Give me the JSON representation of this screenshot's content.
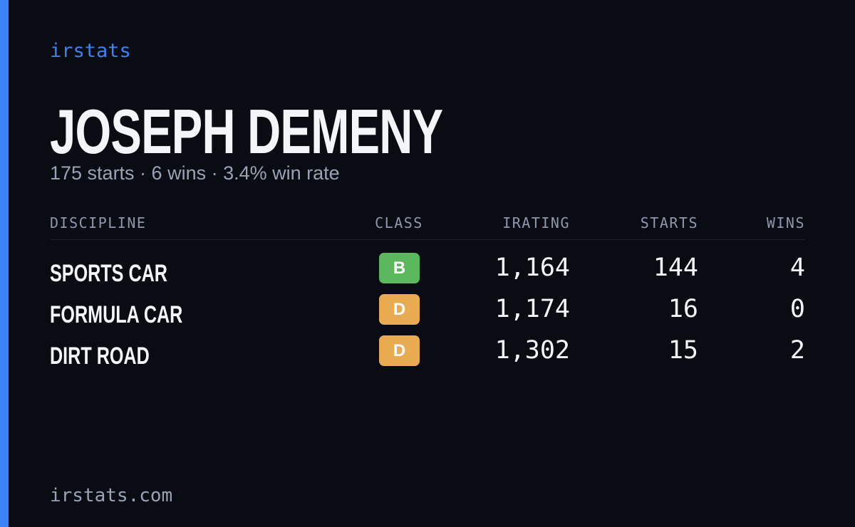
{
  "brand": "irstats",
  "driver": {
    "name": "JOSEPH DEMENY",
    "summary": "175 starts · 6 wins · 3.4% win rate"
  },
  "table": {
    "headers": [
      "DISCIPLINE",
      "CLASS",
      "IRATING",
      "STARTS",
      "WINS"
    ],
    "rows": [
      [
        "SPORTS CAR",
        "B",
        "1,164",
        "144",
        "4"
      ],
      [
        "FORMULA CAR",
        "D",
        "1,174",
        "16",
        "0"
      ],
      [
        "DIRT ROAD",
        "D",
        "1,302",
        "15",
        "2"
      ]
    ]
  },
  "footer": "irstats.com"
}
